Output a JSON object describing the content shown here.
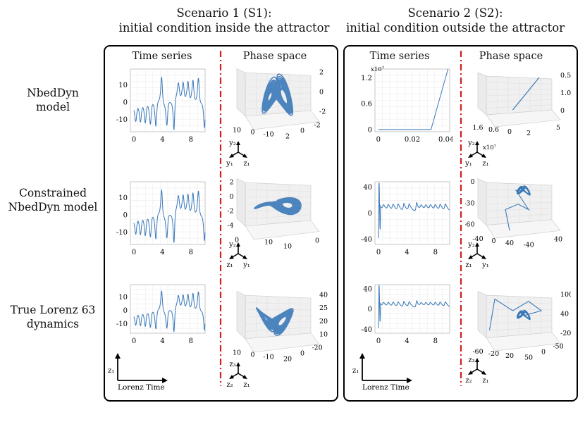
{
  "figure": {
    "scenarios": [
      {
        "title": "Scenario 1 (S1):",
        "subtitle": "initial condition inside the attractor"
      },
      {
        "title": "Scenario 2 (S2):",
        "subtitle": "initial condition outside the attractor"
      }
    ],
    "column_headers": {
      "time": "Time series",
      "phase": "Phase space"
    },
    "rows": [
      {
        "line1": "NbedDyn",
        "line2": "model"
      },
      {
        "line1": "Constrained",
        "line2": "NbedDyn model"
      },
      {
        "line1": "True Lorenz 63",
        "line2": "dynamics"
      }
    ],
    "legend": {
      "time_axis": "Lorenz Time",
      "y_axis": "z₁"
    },
    "triads": [
      {
        "top": "y₂",
        "left": "y₁",
        "right": "z₁"
      },
      {
        "top": "y₂",
        "left": "z₁",
        "right": "y₁"
      },
      {
        "top": "z₃",
        "left": "z₂",
        "right": "z₁"
      },
      {
        "top": "y₂",
        "left": "y₁",
        "right": "z₁",
        "mult": "x10⁷"
      },
      {
        "top": "y₂",
        "left": "z₁",
        "right": "y₁"
      },
      {
        "top": "z₃",
        "left": "z₂",
        "right": "z₁"
      }
    ]
  },
  "chart_data": [
    {
      "id": "s1-r1-ts",
      "type": "line",
      "xlim": [
        -0.5,
        10
      ],
      "ylim": [
        -17,
        19
      ],
      "xticks": [
        "0",
        "4",
        "8"
      ],
      "yticks": [
        "10",
        "0",
        "-10"
      ],
      "ytick_values": [
        10,
        0,
        -10
      ],
      "xtick_values": [
        0,
        4,
        8
      ],
      "series_kind": "lorenz"
    },
    {
      "id": "s1-r2-ts",
      "type": "line",
      "xlim": [
        -0.5,
        10
      ],
      "ylim": [
        -17,
        19
      ],
      "xticks": [
        "0",
        "4",
        "8"
      ],
      "yticks": [
        "10",
        "0",
        "-10"
      ],
      "ytick_values": [
        10,
        0,
        -10
      ],
      "xtick_values": [
        0,
        4,
        8
      ],
      "series_kind": "lorenz"
    },
    {
      "id": "s1-r3-ts",
      "type": "line",
      "xlim": [
        -0.5,
        10
      ],
      "ylim": [
        -17,
        19
      ],
      "xticks": [
        "0",
        "4",
        "8"
      ],
      "yticks": [
        "10",
        "0",
        "-10"
      ],
      "ytick_values": [
        10,
        0,
        -10
      ],
      "xtick_values": [
        0,
        4,
        8
      ],
      "series_kind": "lorenz"
    },
    {
      "id": "s2-r1-ts",
      "type": "line",
      "xlim": [
        -0.002,
        0.042
      ],
      "ylim": [
        -0.05,
        1.4
      ],
      "xticks": [
        "0",
        "0.02",
        "0.04"
      ],
      "xtick_values": [
        0,
        0.02,
        0.04
      ],
      "yticks": [
        "1.2",
        "0.6",
        "0"
      ],
      "ytick_values": [
        1.2,
        0.6,
        0
      ],
      "multiplier": "x10⁷",
      "x": [
        0,
        0.031,
        0.041
      ],
      "y": [
        0,
        0,
        1.4
      ]
    },
    {
      "id": "s2-r2-ts",
      "type": "line",
      "xlim": [
        -0.5,
        10
      ],
      "ylim": [
        -48,
        48
      ],
      "xticks": [
        "0",
        "4",
        "8"
      ],
      "yticks": [
        "40",
        "0",
        "-40"
      ],
      "ytick_values": [
        40,
        0,
        -40
      ],
      "xtick_values": [
        0,
        4,
        8
      ],
      "series_kind": "transient"
    },
    {
      "id": "s2-r3-ts",
      "type": "line",
      "xlim": [
        -0.5,
        10
      ],
      "ylim": [
        -48,
        48
      ],
      "xticks": [
        "0",
        "4",
        "8"
      ],
      "yticks": [
        "40",
        "0",
        "-40"
      ],
      "ytick_values": [
        40,
        0,
        -40
      ],
      "xtick_values": [
        0,
        4,
        8
      ],
      "series_kind": "transient"
    },
    {
      "id": "s1-r1-ph",
      "type": "scatter",
      "ticks_right": [
        "2",
        "0",
        "-2"
      ],
      "ticks_bottom": [
        "10",
        "0",
        "-10",
        "2",
        "0",
        "-2"
      ]
    },
    {
      "id": "s1-r2-ph",
      "type": "scatter",
      "ticks_left": [
        "2",
        "0",
        "-2",
        "-4"
      ],
      "ticks_bottom": [
        "0",
        "10",
        "10",
        "0"
      ]
    },
    {
      "id": "s1-r3-ph",
      "type": "scatter",
      "ticks_right": [
        "40",
        "25",
        "20",
        "10"
      ],
      "ticks_bottom": [
        "10",
        "0",
        "-10",
        "20",
        "0",
        "-20"
      ]
    },
    {
      "id": "s2-r1-ph",
      "type": "line",
      "ticks_right": [
        "0.5",
        "1.0",
        "0"
      ],
      "ticks_bottom": [
        "1.6",
        "0.6",
        "0",
        "2",
        "5"
      ]
    },
    {
      "id": "s2-r2-ph",
      "type": "line",
      "ticks_left": [
        "0",
        "-30",
        "-60"
      ],
      "ticks_bottom": [
        "-40",
        "0",
        "40",
        "-40",
        "40"
      ]
    },
    {
      "id": "s2-r3-ph",
      "type": "line",
      "ticks_right": [
        "100",
        "40",
        "-20"
      ],
      "ticks_bottom": [
        "-60",
        "-20",
        "20",
        "50",
        "0",
        "-50"
      ]
    }
  ]
}
